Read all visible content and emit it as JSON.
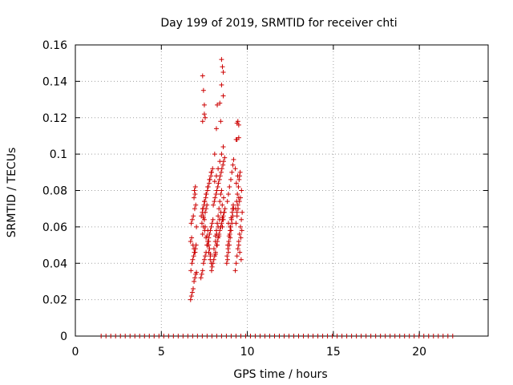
{
  "chart_data": {
    "type": "scatter",
    "title": "Day 199 of 2019, SRMTID for receiver chti",
    "xlabel": "GPS time / hours",
    "ylabel": "SRMTID / TECUs",
    "xlim": [
      0,
      24
    ],
    "ylim": [
      0,
      0.16
    ],
    "x_ticks": [
      0,
      5,
      10,
      15,
      20
    ],
    "x_tick_labels": [
      "0",
      "5",
      "10",
      "15",
      "20"
    ],
    "y_ticks": [
      0,
      0.02,
      0.04,
      0.06,
      0.08,
      0.1,
      0.12,
      0.14,
      0.16
    ],
    "y_tick_labels": [
      "0",
      "0.02",
      "0.04",
      "0.06",
      "0.08",
      "0.1",
      "0.12",
      "0.14",
      "0.16"
    ],
    "grid": true,
    "marker": "+",
    "color": "#cc0000",
    "series": [
      {
        "x": [
          6.7,
          6.75,
          6.8,
          6.85,
          6.9,
          6.95,
          7.0,
          6.72,
          6.78,
          6.82,
          6.88,
          6.92,
          6.98,
          7.02,
          6.7,
          6.76,
          6.84,
          6.9,
          6.96,
          7.04,
          6.74,
          6.8,
          6.86,
          6.94,
          7.0,
          6.9,
          6.96,
          6.92,
          6.98,
          7.04,
          7.3,
          7.35,
          7.4,
          7.45,
          7.5,
          7.55,
          7.6,
          7.65,
          7.7,
          7.75,
          7.8,
          7.85,
          7.9,
          7.95,
          8.0,
          7.32,
          7.38,
          7.42,
          7.48,
          7.52,
          7.58,
          7.62,
          7.68,
          7.72,
          7.78,
          7.82,
          7.88,
          7.92,
          7.98,
          7.4,
          7.45,
          7.5,
          7.55,
          7.6,
          7.65,
          7.7,
          7.75,
          7.8,
          7.85,
          7.9,
          7.95,
          7.36,
          7.44,
          7.52,
          7.6,
          7.68,
          7.76,
          7.84,
          7.92,
          7.4,
          7.5,
          7.6,
          7.7,
          7.8,
          7.9,
          7.45,
          7.55,
          7.65,
          7.75,
          7.85,
          8.0,
          8.05,
          8.1,
          8.15,
          8.2,
          8.25,
          8.3,
          8.35,
          8.4,
          8.45,
          8.5,
          8.55,
          8.6,
          8.65,
          8.7,
          8.02,
          8.08,
          8.12,
          8.18,
          8.22,
          8.28,
          8.32,
          8.38,
          8.42,
          8.48,
          8.52,
          8.58,
          8.62,
          8.68,
          8.1,
          8.15,
          8.2,
          8.25,
          8.3,
          8.35,
          8.4,
          8.45,
          8.5,
          8.55,
          8.6,
          8.65,
          8.06,
          8.14,
          8.22,
          8.3,
          8.38,
          8.46,
          8.54,
          8.62,
          8.1,
          8.2,
          8.3,
          8.4,
          8.5,
          8.6,
          8.15,
          8.25,
          8.35,
          8.45,
          8.55,
          8.8,
          8.85,
          8.9,
          8.95,
          9.0,
          9.05,
          9.1,
          9.15,
          9.2,
          8.82,
          8.88,
          8.92,
          8.98,
          9.02,
          9.08,
          9.12,
          9.18,
          8.84,
          8.9,
          8.96,
          9.04,
          9.1,
          9.16,
          8.86,
          8.94,
          9.0,
          9.06,
          9.14,
          8.9,
          9.0,
          9.3,
          9.35,
          9.4,
          9.45,
          9.5,
          9.55,
          9.6,
          9.65,
          9.7,
          9.32,
          9.38,
          9.42,
          9.48,
          9.52,
          9.58,
          9.62,
          9.68,
          9.34,
          9.4,
          9.46,
          9.54,
          9.6,
          9.66,
          9.36,
          9.44,
          9.5,
          9.56,
          9.64,
          9.4,
          9.5,
          7.4,
          7.45,
          7.5,
          7.55,
          8.5,
          8.55,
          8.6,
          8.45,
          8.2,
          8.25,
          9.4,
          9.45,
          9.5,
          9.35,
          9.4,
          9.45,
          9.5,
          9.55,
          7.4,
          7.5,
          8.4,
          8.5,
          8.6,
          9.2,
          9.3
        ],
        "y": [
          0.02,
          0.022,
          0.024,
          0.026,
          0.03,
          0.032,
          0.034,
          0.036,
          0.04,
          0.042,
          0.044,
          0.046,
          0.048,
          0.05,
          0.052,
          0.054,
          0.05,
          0.048,
          0.046,
          0.06,
          0.062,
          0.064,
          0.066,
          0.07,
          0.072,
          0.076,
          0.078,
          0.08,
          0.082,
          0.035,
          0.032,
          0.034,
          0.036,
          0.04,
          0.042,
          0.044,
          0.046,
          0.05,
          0.052,
          0.054,
          0.056,
          0.058,
          0.06,
          0.062,
          0.064,
          0.066,
          0.068,
          0.07,
          0.072,
          0.074,
          0.076,
          0.078,
          0.08,
          0.082,
          0.084,
          0.086,
          0.088,
          0.09,
          0.092,
          0.056,
          0.06,
          0.064,
          0.068,
          0.07,
          0.072,
          0.058,
          0.052,
          0.048,
          0.044,
          0.04,
          0.038,
          0.062,
          0.066,
          0.058,
          0.054,
          0.05,
          0.046,
          0.042,
          0.036,
          0.07,
          0.074,
          0.078,
          0.082,
          0.086,
          0.09,
          0.065,
          0.06,
          0.055,
          0.05,
          0.045,
          0.04,
          0.042,
          0.044,
          0.046,
          0.05,
          0.052,
          0.054,
          0.056,
          0.058,
          0.06,
          0.062,
          0.064,
          0.066,
          0.068,
          0.07,
          0.072,
          0.074,
          0.076,
          0.078,
          0.08,
          0.082,
          0.084,
          0.086,
          0.088,
          0.09,
          0.092,
          0.094,
          0.096,
          0.098,
          0.1,
          0.055,
          0.058,
          0.062,
          0.066,
          0.07,
          0.074,
          0.078,
          0.08,
          0.06,
          0.064,
          0.068,
          0.048,
          0.052,
          0.056,
          0.06,
          0.064,
          0.068,
          0.072,
          0.076,
          0.085,
          0.088,
          0.092,
          0.096,
          0.1,
          0.104,
          0.045,
          0.05,
          0.055,
          0.06,
          0.065,
          0.04,
          0.042,
          0.046,
          0.05,
          0.054,
          0.058,
          0.062,
          0.066,
          0.07,
          0.044,
          0.048,
          0.052,
          0.056,
          0.06,
          0.064,
          0.068,
          0.072,
          0.074,
          0.078,
          0.082,
          0.086,
          0.09,
          0.094,
          0.05,
          0.055,
          0.06,
          0.065,
          0.07,
          0.062,
          0.058,
          0.036,
          0.04,
          0.044,
          0.048,
          0.052,
          0.056,
          0.06,
          0.064,
          0.068,
          0.07,
          0.074,
          0.078,
          0.082,
          0.086,
          0.09,
          0.054,
          0.058,
          0.062,
          0.066,
          0.07,
          0.074,
          0.076,
          0.08,
          0.084,
          0.088,
          0.05,
          0.046,
          0.042,
          0.108,
          0.116,
          0.143,
          0.135,
          0.127,
          0.12,
          0.152,
          0.148,
          0.132,
          0.118,
          0.114,
          0.127,
          0.117,
          0.118,
          0.109,
          0.108,
          0.068,
          0.072,
          0.076,
          0.088,
          0.118,
          0.122,
          0.128,
          0.138,
          0.145,
          0.097,
          0.092
        ]
      }
    ]
  }
}
